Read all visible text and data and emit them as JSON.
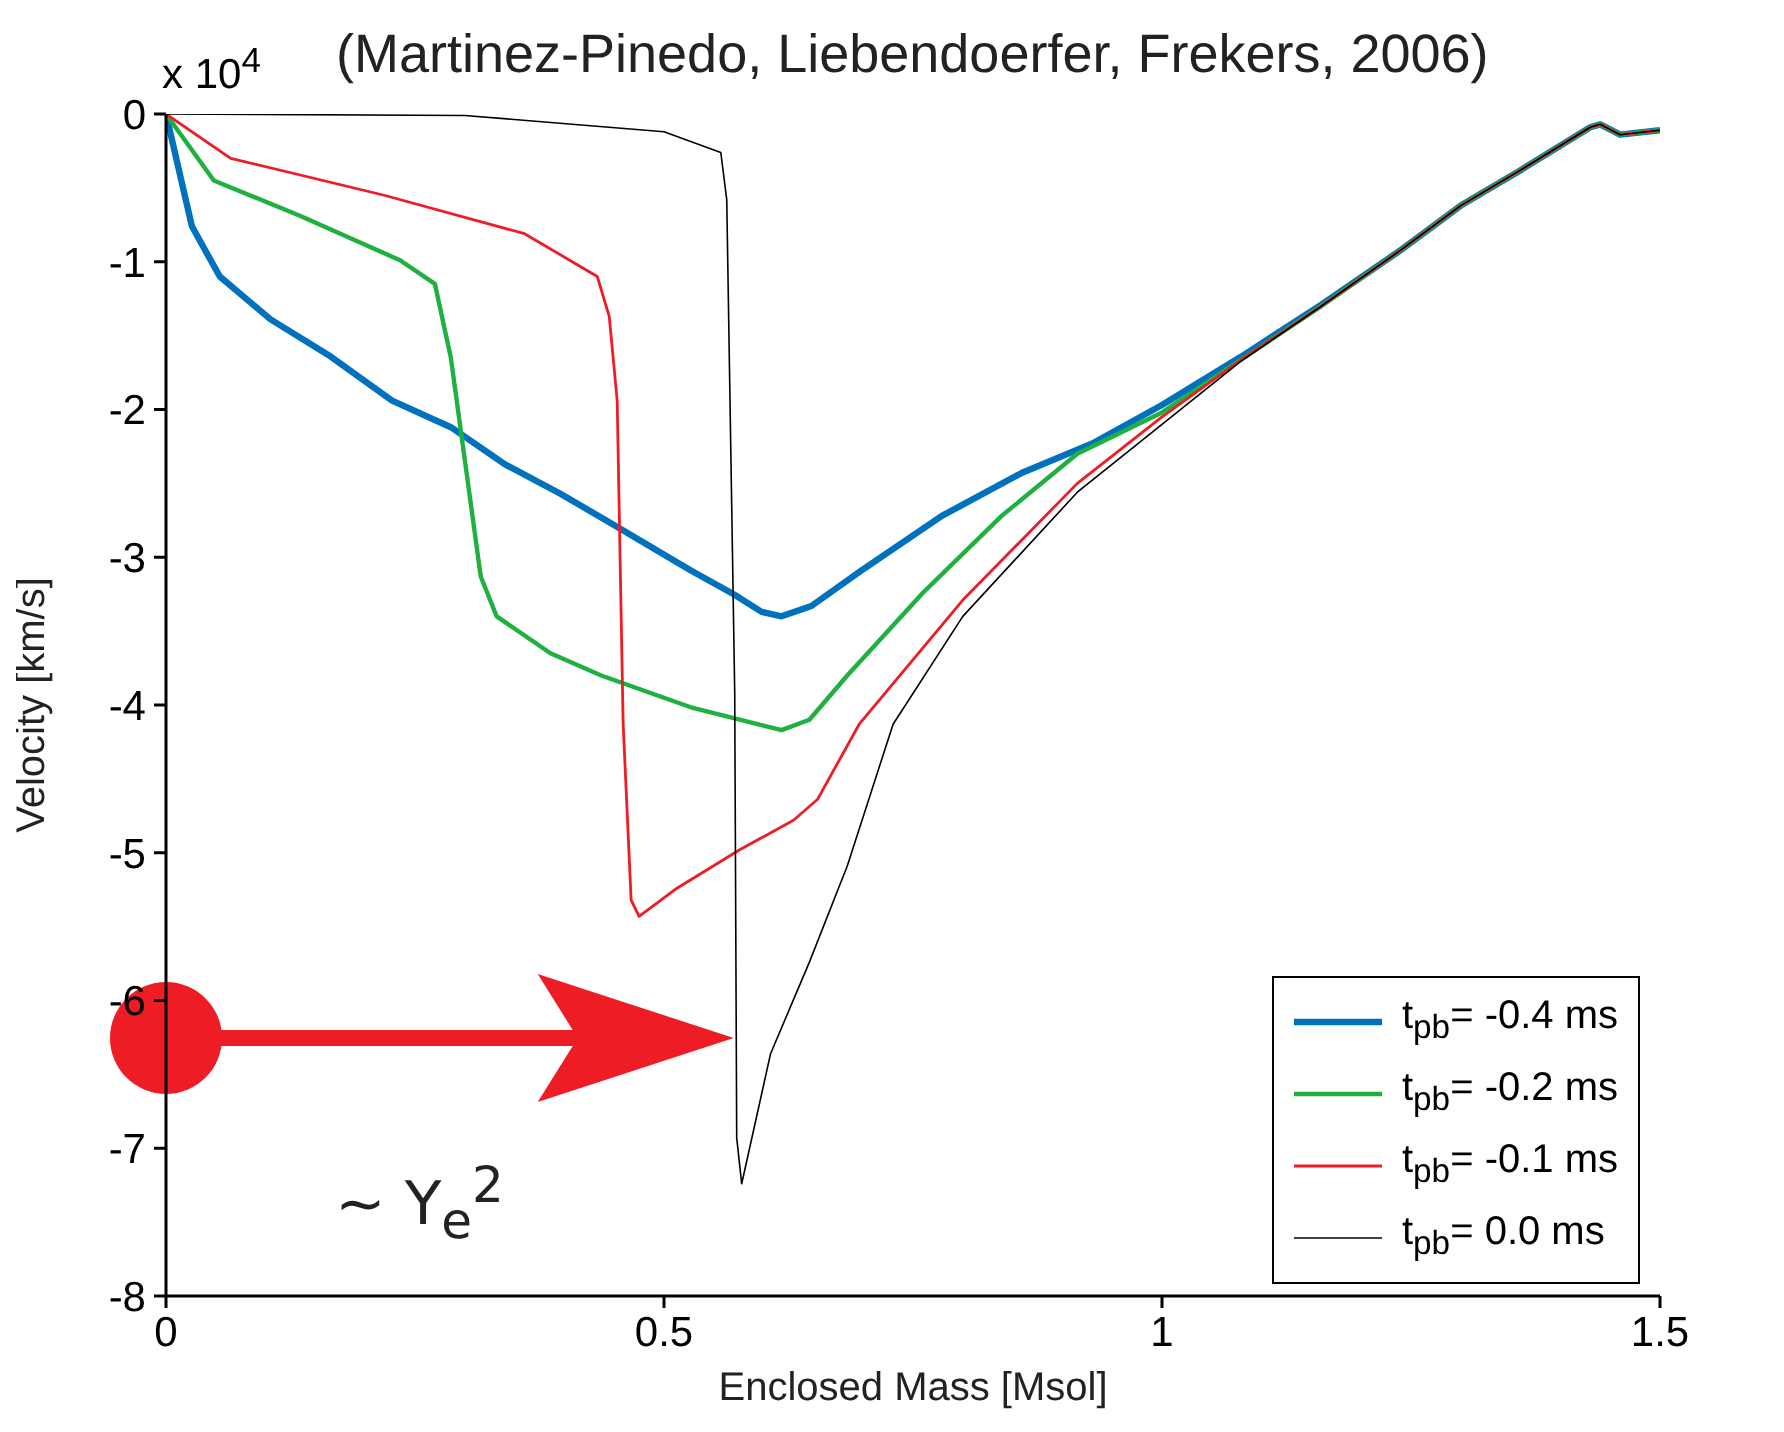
{
  "chart_data": {
    "type": "line",
    "title": "(Martinez-Pinedo, Liebendoerfer, Frekers, 2006)",
    "xlabel": "Enclosed Mass [Msol]",
    "ylabel": "Velocity [km/s]",
    "annotations": [
      "x 10$^{4}$",
      "~ Y$_{e}$$^{2}$"
    ],
    "xlim": [
      0,
      1.5
    ],
    "xticks": [
      0,
      0.5,
      1,
      1.5
    ],
    "ylim": [
      -8,
      0
    ],
    "yticks": [
      -8,
      -7,
      -6,
      -5,
      -4,
      -3,
      -2,
      -1,
      0
    ],
    "legend": "bottom right",
    "marker": "none",
    "line_style": "solid",
    "series": [
      {
        "name": "t$_{pb}$= -0.4 ms",
        "color": "#0072bd",
        "x": [
          0,
          0.026,
          0.054,
          0.105,
          0.165,
          0.227,
          0.286,
          0.34,
          0.396,
          0.457,
          0.527,
          0.57,
          0.598,
          0.618,
          0.648,
          0.698,
          0.779,
          0.859,
          0.93,
          1.0,
          1.08,
          1.16,
          1.24,
          1.3,
          1.36,
          1.43,
          1.44,
          1.46,
          1.5
        ],
        "values": [
          0,
          -0.76,
          -1.1,
          -1.39,
          -1.64,
          -1.94,
          -2.12,
          -2.37,
          -2.57,
          -2.81,
          -3.09,
          -3.25,
          -3.37,
          -3.4,
          -3.33,
          -3.09,
          -2.72,
          -2.43,
          -2.23,
          -1.97,
          -1.64,
          -1.29,
          -0.92,
          -0.62,
          -0.38,
          -0.09,
          -0.07,
          -0.14,
          -0.11
        ]
      },
      {
        "name": "t$_{pb}$= -0.2 ms",
        "color": "#1fb040",
        "x": [
          0,
          0.048,
          0.135,
          0.235,
          0.27,
          0.286,
          0.316,
          0.332,
          0.386,
          0.437,
          0.529,
          0.618,
          0.646,
          0.684,
          0.76,
          0.839,
          0.915,
          1.0,
          1.08,
          1.16,
          1.24,
          1.3,
          1.36,
          1.43,
          1.44,
          1.46,
          1.5
        ],
        "values": [
          0,
          -0.45,
          -0.69,
          -0.99,
          -1.15,
          -1.65,
          -3.13,
          -3.4,
          -3.65,
          -3.8,
          -4.02,
          -4.17,
          -4.1,
          -3.8,
          -3.24,
          -2.72,
          -2.3,
          -2.02,
          -1.66,
          -1.3,
          -0.92,
          -0.62,
          -0.38,
          -0.09,
          -0.07,
          -0.14,
          -0.11
        ]
      },
      {
        "name": "t$_{pb}$= -0.1 ms",
        "color": "#ee1c25",
        "x": [
          0,
          0.065,
          0.219,
          0.36,
          0.433,
          0.445,
          0.453,
          0.459,
          0.467,
          0.475,
          0.513,
          0.576,
          0.63,
          0.654,
          0.696,
          0.8,
          0.915,
          1.0,
          1.08,
          1.16,
          1.24,
          1.3,
          1.36,
          1.43,
          1.44,
          1.46,
          1.5
        ],
        "values": [
          0,
          -0.3,
          -0.55,
          -0.81,
          -1.1,
          -1.37,
          -1.94,
          -4.13,
          -5.32,
          -5.43,
          -5.24,
          -4.98,
          -4.78,
          -4.64,
          -4.13,
          -3.29,
          -2.5,
          -2.05,
          -1.66,
          -1.3,
          -0.92,
          -0.62,
          -0.38,
          -0.09,
          -0.07,
          -0.14,
          -0.11
        ]
      },
      {
        "name": "t$_{pb}$=  0.0 ms",
        "color": "#000000",
        "x": [
          0,
          0.3,
          0.5,
          0.557,
          0.563,
          0.571,
          0.573,
          0.578,
          0.607,
          0.646,
          0.684,
          0.73,
          0.8,
          0.915,
          1.0,
          1.08,
          1.16,
          1.24,
          1.3,
          1.36,
          1.43,
          1.44,
          1.46,
          1.5
        ],
        "values": [
          0,
          -0.01,
          -0.12,
          -0.26,
          -0.58,
          -3.91,
          -6.93,
          -7.24,
          -6.36,
          -5.74,
          -5.09,
          -4.13,
          -3.4,
          -2.56,
          -2.1,
          -1.67,
          -1.3,
          -0.92,
          -0.62,
          -0.38,
          -0.09,
          -0.07,
          -0.14,
          -0.11
        ]
      }
    ]
  }
}
